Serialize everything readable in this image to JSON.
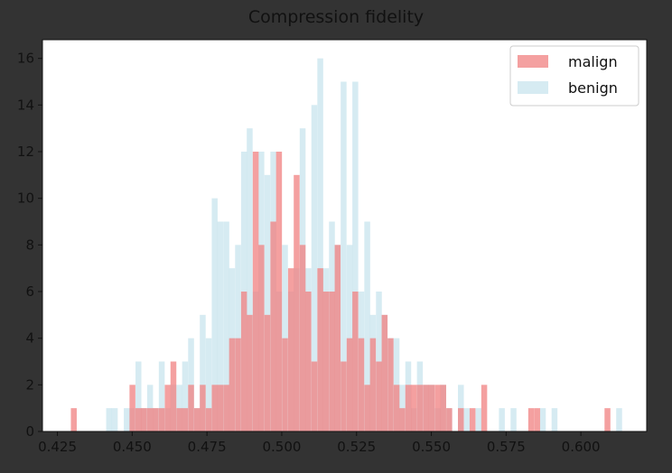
{
  "chart_data": {
    "type": "bar",
    "title": "Compression fidelity",
    "xlabel": "",
    "ylabel": "",
    "xlim": [
      0.42,
      0.622
    ],
    "ylim": [
      0,
      16.8
    ],
    "xticks": [
      {
        "value": 0.425,
        "label": "0.425"
      },
      {
        "value": 0.45,
        "label": "0.450"
      },
      {
        "value": 0.475,
        "label": "0.475"
      },
      {
        "value": 0.5,
        "label": "0.500"
      },
      {
        "value": 0.525,
        "label": "0.525"
      },
      {
        "value": 0.55,
        "label": "0.550"
      },
      {
        "value": 0.575,
        "label": "0.575"
      },
      {
        "value": 0.6,
        "label": "0.600"
      }
    ],
    "yticks": [
      {
        "value": 0,
        "label": "0"
      },
      {
        "value": 2,
        "label": "2"
      },
      {
        "value": 4,
        "label": "4"
      },
      {
        "value": 6,
        "label": "6"
      },
      {
        "value": 8,
        "label": "8"
      },
      {
        "value": 10,
        "label": "10"
      },
      {
        "value": 12,
        "label": "12"
      },
      {
        "value": 14,
        "label": "14"
      },
      {
        "value": 16,
        "label": "16"
      }
    ],
    "legend_position": "top-right",
    "series": [
      {
        "name": "malign",
        "color": "#f08080",
        "opacity": 0.75,
        "bin_width": 0.00196,
        "bins": [
          [
            0.4295,
            1
          ],
          [
            0.4491,
            2
          ],
          [
            0.4511,
            1
          ],
          [
            0.453,
            1
          ],
          [
            0.455,
            1
          ],
          [
            0.4569,
            1
          ],
          [
            0.4589,
            1
          ],
          [
            0.4609,
            2
          ],
          [
            0.4628,
            3
          ],
          [
            0.4648,
            1
          ],
          [
            0.4667,
            1
          ],
          [
            0.4687,
            2
          ],
          [
            0.4707,
            1
          ],
          [
            0.4726,
            2
          ],
          [
            0.4746,
            1
          ],
          [
            0.4766,
            2
          ],
          [
            0.4785,
            2
          ],
          [
            0.4805,
            2
          ],
          [
            0.4824,
            4
          ],
          [
            0.4844,
            4
          ],
          [
            0.4864,
            6
          ],
          [
            0.4883,
            5
          ],
          [
            0.4903,
            12
          ],
          [
            0.4922,
            8
          ],
          [
            0.4942,
            5
          ],
          [
            0.4962,
            9
          ],
          [
            0.4981,
            12
          ],
          [
            0.5001,
            4
          ],
          [
            0.5021,
            7
          ],
          [
            0.504,
            11
          ],
          [
            0.506,
            8
          ],
          [
            0.5079,
            6
          ],
          [
            0.5099,
            3
          ],
          [
            0.5119,
            7
          ],
          [
            0.5138,
            6
          ],
          [
            0.5158,
            6
          ],
          [
            0.5177,
            8
          ],
          [
            0.5197,
            3
          ],
          [
            0.5217,
            4
          ],
          [
            0.5236,
            6
          ],
          [
            0.5256,
            4
          ],
          [
            0.5276,
            2
          ],
          [
            0.5295,
            4
          ],
          [
            0.5315,
            3
          ],
          [
            0.5334,
            5
          ],
          [
            0.5354,
            4
          ],
          [
            0.5374,
            2
          ],
          [
            0.5393,
            1
          ],
          [
            0.5413,
            2
          ],
          [
            0.5432,
            2
          ],
          [
            0.5452,
            2
          ],
          [
            0.5472,
            2
          ],
          [
            0.5491,
            2
          ],
          [
            0.5511,
            2
          ],
          [
            0.553,
            2
          ],
          [
            0.555,
            1
          ],
          [
            0.5589,
            1
          ],
          [
            0.5628,
            1
          ],
          [
            0.5667,
            2
          ],
          [
            0.5824,
            1
          ],
          [
            0.5844,
            1
          ],
          [
            0.6079,
            1
          ]
        ]
      },
      {
        "name": "benign",
        "color": "#add8e6",
        "opacity": 0.5,
        "bin_width": 0.00196,
        "bins": [
          [
            0.4413,
            1
          ],
          [
            0.4432,
            1
          ],
          [
            0.4472,
            1
          ],
          [
            0.4491,
            1
          ],
          [
            0.4511,
            3
          ],
          [
            0.453,
            1
          ],
          [
            0.455,
            2
          ],
          [
            0.4569,
            1
          ],
          [
            0.4589,
            3
          ],
          [
            0.4609,
            1
          ],
          [
            0.4628,
            2
          ],
          [
            0.4648,
            2
          ],
          [
            0.4667,
            3
          ],
          [
            0.4687,
            4
          ],
          [
            0.4707,
            1
          ],
          [
            0.4726,
            5
          ],
          [
            0.4746,
            4
          ],
          [
            0.4766,
            10
          ],
          [
            0.4785,
            9
          ],
          [
            0.4805,
            9
          ],
          [
            0.4824,
            7
          ],
          [
            0.4844,
            8
          ],
          [
            0.4864,
            12
          ],
          [
            0.4883,
            13
          ],
          [
            0.4903,
            6
          ],
          [
            0.4922,
            12
          ],
          [
            0.4942,
            11
          ],
          [
            0.4962,
            12
          ],
          [
            0.4981,
            6
          ],
          [
            0.5001,
            8
          ],
          [
            0.5021,
            6
          ],
          [
            0.504,
            7
          ],
          [
            0.506,
            13
          ],
          [
            0.5079,
            7
          ],
          [
            0.5099,
            14
          ],
          [
            0.5119,
            16
          ],
          [
            0.5138,
            7
          ],
          [
            0.5158,
            9
          ],
          [
            0.5177,
            8
          ],
          [
            0.5197,
            15
          ],
          [
            0.5217,
            8
          ],
          [
            0.5236,
            15
          ],
          [
            0.5256,
            6
          ],
          [
            0.5276,
            9
          ],
          [
            0.5295,
            5
          ],
          [
            0.5315,
            6
          ],
          [
            0.5334,
            5
          ],
          [
            0.5354,
            4
          ],
          [
            0.5374,
            4
          ],
          [
            0.5393,
            2
          ],
          [
            0.5413,
            3
          ],
          [
            0.5432,
            1
          ],
          [
            0.5452,
            3
          ],
          [
            0.5472,
            2
          ],
          [
            0.5491,
            2
          ],
          [
            0.5511,
            1
          ],
          [
            0.553,
            2
          ],
          [
            0.555,
            1
          ],
          [
            0.5589,
            2
          ],
          [
            0.5609,
            1
          ],
          [
            0.5648,
            1
          ],
          [
            0.5726,
            1
          ],
          [
            0.5765,
            1
          ],
          [
            0.5863,
            1
          ],
          [
            0.5902,
            1
          ],
          [
            0.6118,
            1
          ]
        ]
      }
    ]
  }
}
